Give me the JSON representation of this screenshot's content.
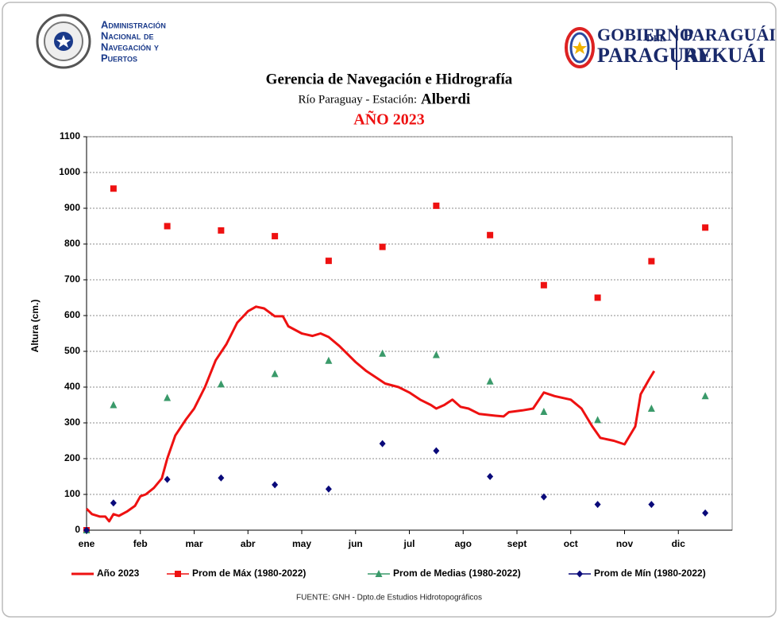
{
  "header": {
    "agency_lines": [
      "Administración",
      "Nacional de",
      "Navegación y",
      "Puertos"
    ],
    "gov_lines": [
      "GOBIERNO",
      "DEL",
      "PARAGUAY"
    ],
    "gov_guarani": [
      "PARAGUÁI",
      "REKUÁI"
    ]
  },
  "chart_data": {
    "type": "line",
    "title": "Gerencia de Navegación e Hidrografía",
    "subtitle": "Río Paraguay  -  Estación:",
    "station": "Alberdi",
    "year_title": "AÑO 2023",
    "y_label": "Altura (cm.)",
    "source": "FUENTE:  GNH - Dpto.de Estudios Hidrotopográficos",
    "xlim": [
      0,
      12
    ],
    "ylim": [
      0,
      1100
    ],
    "yticks": [
      0,
      100,
      200,
      300,
      400,
      500,
      600,
      700,
      800,
      900,
      1000,
      1100
    ],
    "xticks": [
      {
        "value": 0,
        "label": "ene"
      },
      {
        "value": 1,
        "label": "feb"
      },
      {
        "value": 2,
        "label": "mar"
      },
      {
        "value": 3,
        "label": "abr"
      },
      {
        "value": 4,
        "label": "may"
      },
      {
        "value": 5,
        "label": "jun"
      },
      {
        "value": 6,
        "label": "jul"
      },
      {
        "value": 7,
        "label": "ago"
      },
      {
        "value": 8,
        "label": "sept"
      },
      {
        "value": 9,
        "label": "oct"
      },
      {
        "value": 10,
        "label": "nov"
      },
      {
        "value": 11,
        "label": "dic"
      }
    ],
    "grid": true,
    "legend": "bottom",
    "series": [
      {
        "name": "Año 2023",
        "color": "#ee1111",
        "style": "line",
        "x": [
          0,
          0.1,
          0.25,
          0.35,
          0.42,
          0.5,
          0.6,
          0.75,
          0.9,
          1.0,
          1.1,
          1.25,
          1.4,
          1.5,
          1.65,
          1.85,
          2.0,
          2.2,
          2.4,
          2.6,
          2.8,
          3.0,
          3.15,
          3.3,
          3.5,
          3.65,
          3.75,
          4.0,
          4.2,
          4.35,
          4.5,
          4.7,
          5.0,
          5.2,
          5.4,
          5.55,
          5.8,
          6.0,
          6.2,
          6.4,
          6.5,
          6.65,
          6.8,
          6.95,
          7.1,
          7.3,
          7.6,
          7.75,
          7.85,
          8.1,
          8.3,
          8.5,
          8.7,
          9.0,
          9.2,
          9.4,
          9.55,
          9.8,
          10.0,
          10.2,
          10.3,
          10.45,
          10.55
        ],
        "values": [
          60,
          45,
          38,
          38,
          25,
          45,
          40,
          52,
          68,
          95,
          100,
          118,
          145,
          200,
          265,
          310,
          340,
          400,
          475,
          520,
          580,
          612,
          625,
          620,
          598,
          598,
          570,
          550,
          543,
          550,
          540,
          515,
          470,
          445,
          425,
          410,
          400,
          385,
          365,
          350,
          340,
          350,
          365,
          345,
          340,
          325,
          320,
          318,
          330,
          335,
          340,
          385,
          375,
          365,
          340,
          290,
          258,
          250,
          240,
          290,
          380,
          420,
          445
        ]
      },
      {
        "name": "Prom de Máx (1980-2022)",
        "color": "#ee1111",
        "style": "markers",
        "marker": "square",
        "x": [
          0,
          0.5,
          1.5,
          2.5,
          3.5,
          4.5,
          5.5,
          6.5,
          7.5,
          8.5,
          9.5,
          10.5,
          11.5
        ],
        "values": [
          0,
          955,
          850,
          838,
          822,
          753,
          792,
          907,
          825,
          685,
          650,
          752,
          846
        ]
      },
      {
        "name": "Prom de Medias (1980-2022)",
        "color": "#3a9a6a",
        "style": "markers",
        "marker": "triangle",
        "x": [
          0,
          0.5,
          1.5,
          2.5,
          3.5,
          4.5,
          5.5,
          6.5,
          7.5,
          8.5,
          9.5,
          10.5,
          11.5
        ],
        "values": [
          0,
          350,
          370,
          408,
          437,
          474,
          494,
          490,
          416,
          331,
          308,
          340,
          375
        ]
      },
      {
        "name": "Prom de Mín (1980-2022)",
        "color": "#0a0a7a",
        "style": "markers",
        "marker": "diamond",
        "x": [
          0,
          0.5,
          1.5,
          2.5,
          3.5,
          4.5,
          5.5,
          6.5,
          7.5,
          8.5,
          9.5,
          10.5,
          11.5
        ],
        "values": [
          0,
          76,
          142,
          146,
          127,
          115,
          242,
          222,
          150,
          93,
          72,
          72,
          48
        ]
      }
    ]
  }
}
